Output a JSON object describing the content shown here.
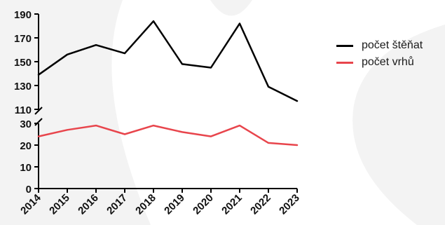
{
  "chart_data": {
    "type": "line",
    "categories": [
      "2014",
      "2015",
      "2016",
      "2017",
      "2018",
      "2019",
      "2020",
      "2021",
      "2022",
      "2023"
    ],
    "axis_break": true,
    "upper_axis": {
      "ylim": [
        110,
        190
      ],
      "ticks": [
        "110",
        "130",
        "150",
        "170",
        "190"
      ]
    },
    "lower_axis": {
      "ylim": [
        0,
        30
      ],
      "ticks": [
        "0",
        "10",
        "20",
        "30"
      ]
    },
    "series": [
      {
        "name": "počet štěňat",
        "color": "#000000",
        "axis": "upper",
        "values": [
          139,
          156,
          164,
          157,
          184,
          148,
          145,
          182,
          129,
          117
        ]
      },
      {
        "name": "počet vrhů",
        "color": "#e8454c",
        "axis": "lower",
        "values": [
          24,
          27,
          29,
          25,
          29,
          26,
          24,
          29,
          21,
          20
        ]
      }
    ],
    "grid": false,
    "legend_position": "right"
  }
}
